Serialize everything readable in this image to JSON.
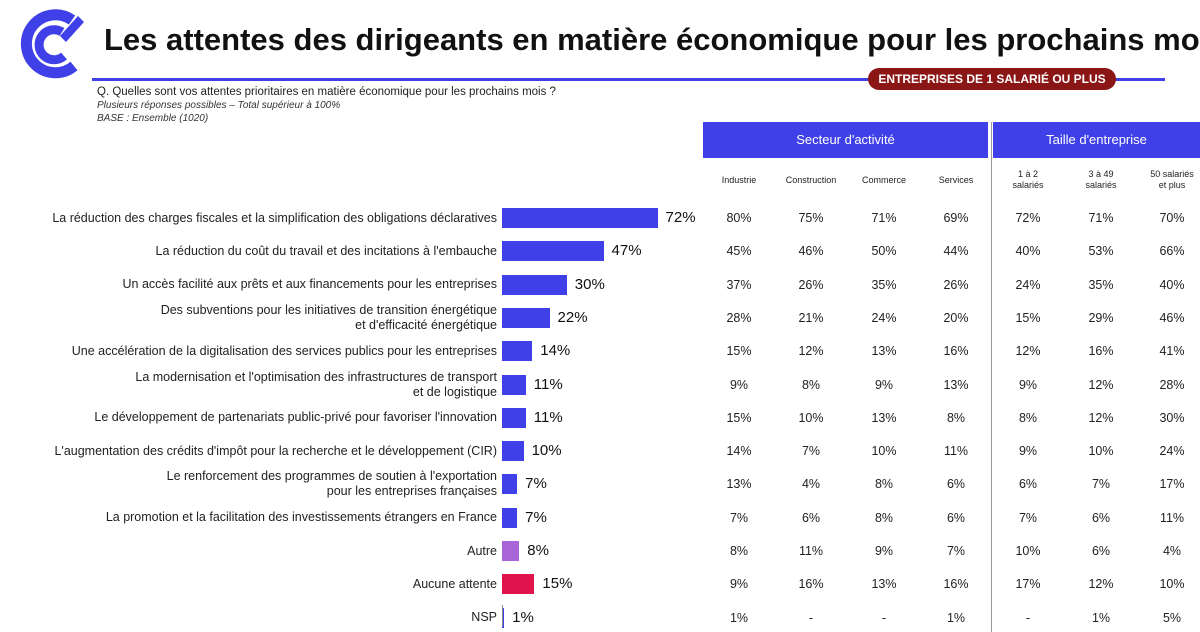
{
  "header": {
    "title": "Les attentes des dirigeants en matière économique pour les prochains mois",
    "scope_badge": "ENTREPRISES DE 1 SALARIÉ OU PLUS",
    "question": "Q. Quelles sont vos attentes prioritaires en matière économique pour les prochains mois ?",
    "note": "Plusieurs réponses possibles – Total supérieur à 100%",
    "base": "BASE : Ensemble (1020)"
  },
  "colors": {
    "accent": "#4040e8",
    "badge": "#8b1616",
    "bar_default": "#4040e8",
    "bar_autre": "#a865d8",
    "bar_aucune": "#e0144c"
  },
  "chart_data": {
    "type": "bar",
    "orientation": "horizontal",
    "unit": "%",
    "categories": [
      "La réduction des charges fiscales et la simplification des obligations déclaratives",
      "La réduction du coût du travail et des incitations à l'embauche",
      "Un accès facilité aux prêts et aux financements pour les entreprises",
      "Des subventions pour les initiatives de transition énergétique et d'efficacité énergétique",
      "Une accélération de la digitalisation des services publics pour les entreprises",
      "La modernisation et l'optimisation des infrastructures de transport et de logistique",
      "Le développement de partenariats public-privé pour favoriser l'innovation",
      "L'augmentation des crédits d'impôt pour la recherche et le développement (CIR)",
      "Le renforcement des programmes de soutien à l'exportation pour les entreprises françaises",
      "La promotion et la facilitation des investissements étrangers en France",
      "Autre",
      "Aucune attente",
      "NSP"
    ],
    "category_lines": [
      [
        "La réduction des charges fiscales et la simplification des obligations déclaratives"
      ],
      [
        "La réduction du coût du travail et des incitations à l'embauche"
      ],
      [
        "Un accès facilité aux prêts et aux financements pour les entreprises"
      ],
      [
        "Des subventions pour les initiatives de transition énergétique",
        "et d'efficacité énergétique"
      ],
      [
        "Une accélération de la digitalisation des services publics pour les entreprises"
      ],
      [
        "La modernisation et l'optimisation des infrastructures de transport",
        "et de logistique"
      ],
      [
        "Le développement de partenariats public-privé pour favoriser l'innovation"
      ],
      [
        "L'augmentation des crédits d'impôt pour la recherche et le développement (CIR)"
      ],
      [
        "Le renforcement des programmes de soutien à l'exportation",
        "pour les entreprises françaises"
      ],
      [
        "La promotion et la facilitation des investissements étrangers en France"
      ],
      [
        "Autre"
      ],
      [
        "Aucune attente"
      ],
      [
        "NSP"
      ]
    ],
    "values": [
      72,
      47,
      30,
      22,
      14,
      11,
      11,
      10,
      7,
      7,
      8,
      15,
      1
    ],
    "value_labels": [
      "72%",
      "47%",
      "30%",
      "22%",
      "14%",
      "11%",
      "11%",
      "10%",
      "7%",
      "7%",
      "8%",
      "15%",
      "1%"
    ],
    "bar_colors": [
      "#4040e8",
      "#4040e8",
      "#4040e8",
      "#4040e8",
      "#4040e8",
      "#4040e8",
      "#4040e8",
      "#4040e8",
      "#4040e8",
      "#4040e8",
      "#a865d8",
      "#e0144c",
      "#4040e8"
    ],
    "xlim": [
      0,
      72
    ],
    "table": {
      "groups": [
        {
          "name": "Secteur d'activité",
          "columns": [
            "Industrie",
            "Construction",
            "Commerce",
            "Services"
          ]
        },
        {
          "name": "Taille d'entreprise",
          "columns": [
            "1 à 2 salariés",
            "3 à 49 salariés",
            "50 salariés et plus"
          ]
        }
      ],
      "column_labels": [
        [
          "Industrie"
        ],
        [
          "Construction"
        ],
        [
          "Commerce"
        ],
        [
          "Services"
        ],
        [
          "1 à 2",
          "salariés"
        ],
        [
          "3 à 49",
          "salariés"
        ],
        [
          "50 salariés",
          "et plus"
        ]
      ],
      "rows": [
        [
          "80%",
          "75%",
          "71%",
          "69%",
          "72%",
          "71%",
          "70%"
        ],
        [
          "45%",
          "46%",
          "50%",
          "44%",
          "40%",
          "53%",
          "66%"
        ],
        [
          "37%",
          "26%",
          "35%",
          "26%",
          "24%",
          "35%",
          "40%"
        ],
        [
          "28%",
          "21%",
          "24%",
          "20%",
          "15%",
          "29%",
          "46%"
        ],
        [
          "15%",
          "12%",
          "13%",
          "16%",
          "12%",
          "16%",
          "41%"
        ],
        [
          "9%",
          "8%",
          "9%",
          "13%",
          "9%",
          "12%",
          "28%"
        ],
        [
          "15%",
          "10%",
          "13%",
          "8%",
          "8%",
          "12%",
          "30%"
        ],
        [
          "14%",
          "7%",
          "10%",
          "11%",
          "9%",
          "10%",
          "24%"
        ],
        [
          "13%",
          "4%",
          "8%",
          "6%",
          "6%",
          "7%",
          "17%"
        ],
        [
          "7%",
          "6%",
          "8%",
          "6%",
          "7%",
          "6%",
          "11%"
        ],
        [
          "8%",
          "11%",
          "9%",
          "7%",
          "10%",
          "6%",
          "4%"
        ],
        [
          "9%",
          "16%",
          "13%",
          "16%",
          "17%",
          "12%",
          "10%"
        ],
        [
          "1%",
          "-",
          "-",
          "1%",
          "-",
          "1%",
          "5%"
        ]
      ]
    }
  }
}
